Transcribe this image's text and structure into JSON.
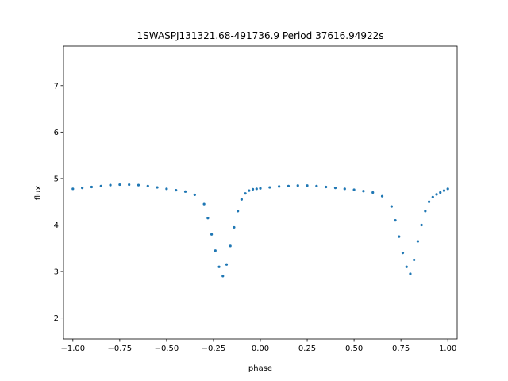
{
  "chart_data": {
    "type": "scatter",
    "title": "1SWASPJ131321.68-491736.9 Period 37616.94922s",
    "xlabel": "phase",
    "ylabel": "flux",
    "xlim": [
      -1.05,
      1.05
    ],
    "ylim": [
      1.55,
      7.85
    ],
    "xticks": [
      -1.0,
      -0.75,
      -0.5,
      -0.25,
      0.0,
      0.25,
      0.5,
      0.75,
      1.0
    ],
    "xtick_labels": [
      "−1.00",
      "−0.75",
      "−0.50",
      "−0.25",
      "0.00",
      "0.25",
      "0.50",
      "0.75",
      "1.00"
    ],
    "yticks": [
      2,
      3,
      4,
      5,
      6,
      7
    ],
    "ytick_labels": [
      "2",
      "3",
      "4",
      "5",
      "6",
      "7"
    ],
    "grid": false,
    "marker_color": "#1f77b4",
    "series": [
      {
        "x": [
          -1.0,
          -0.95,
          -0.9,
          -0.85,
          -0.8,
          -0.75,
          -0.7,
          -0.65,
          -0.6,
          -0.55,
          -0.5,
          -0.45,
          -0.4,
          -0.35,
          -0.3,
          -0.28,
          -0.26,
          -0.24,
          -0.22,
          -0.2,
          -0.18,
          -0.16,
          -0.14,
          -0.12,
          -0.1,
          -0.08,
          -0.06,
          -0.04,
          -0.02,
          0.0,
          0.05,
          0.1,
          0.15,
          0.2,
          0.25,
          0.3,
          0.35,
          0.4,
          0.45,
          0.5,
          0.55,
          0.6,
          0.65,
          0.7,
          0.72,
          0.74,
          0.76,
          0.78,
          0.8,
          0.82,
          0.84,
          0.86,
          0.88,
          0.9,
          0.92,
          0.94,
          0.96,
          0.98,
          1.0
        ],
        "y": [
          4.78,
          4.8,
          4.82,
          4.84,
          4.86,
          4.87,
          4.87,
          4.86,
          4.84,
          4.81,
          4.78,
          4.75,
          4.72,
          4.65,
          4.45,
          4.15,
          3.8,
          3.45,
          3.1,
          2.9,
          3.15,
          3.55,
          3.95,
          4.3,
          4.55,
          4.68,
          4.74,
          4.77,
          4.78,
          4.79,
          4.81,
          4.83,
          4.84,
          4.85,
          4.85,
          4.84,
          4.82,
          4.8,
          4.78,
          4.76,
          4.73,
          4.7,
          4.62,
          4.4,
          4.1,
          3.75,
          3.4,
          3.1,
          2.95,
          3.25,
          3.65,
          4.0,
          4.3,
          4.5,
          4.6,
          4.66,
          4.7,
          4.74,
          4.78
        ]
      }
    ]
  }
}
